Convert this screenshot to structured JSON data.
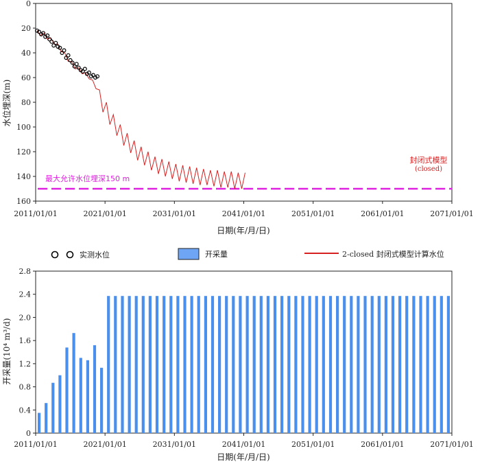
{
  "chart_data": [
    {
      "type": "line",
      "ylabel": "水位埋深(m)",
      "xlabel": "日期(年/月/日)",
      "xlim": [
        2011,
        2071
      ],
      "ylim": [
        0,
        160
      ],
      "y_inverted": true,
      "x_ticks": [
        "2011/01/01",
        "2021/01/01",
        "2031/01/01",
        "2041/01/01",
        "2051/01/01",
        "2061/01/01",
        "2071/01/01"
      ],
      "y_ticks": [
        "0",
        "20",
        "40",
        "60",
        "80",
        "100",
        "120",
        "140",
        "160"
      ],
      "y_tick_values": [
        0,
        20,
        40,
        60,
        80,
        100,
        120,
        140,
        160
      ],
      "series": [
        {
          "name": "实测水位",
          "kind": "scatter",
          "color": "#000000",
          "x": [
            2011.2,
            2011.5,
            2011.8,
            2012.1,
            2012.4,
            2012.7,
            2013.0,
            2013.3,
            2013.6,
            2013.9,
            2014.2,
            2014.5,
            2014.8,
            2015.1,
            2015.4,
            2015.7,
            2016.0,
            2016.3,
            2016.6,
            2016.9,
            2017.2,
            2017.5,
            2017.8,
            2018.1,
            2018.4,
            2018.7,
            2019.0,
            2019.3,
            2019.6,
            2019.9
          ],
          "y": [
            22,
            23,
            25,
            24,
            27,
            26,
            29,
            31,
            34,
            32,
            35,
            36,
            40,
            38,
            44,
            42,
            46,
            48,
            51,
            49,
            52,
            54,
            55,
            53,
            57,
            56,
            59,
            58,
            60,
            59
          ]
        },
        {
          "name": "2-closed 封闭式模型计算水位",
          "kind": "line",
          "color": "#d62020",
          "x_start": 2011.2,
          "step": 0.5,
          "envelope_low": [
            22,
            23,
            24,
            26,
            28,
            30,
            33,
            36,
            40,
            44,
            47,
            50,
            52,
            54,
            56,
            58,
            62,
            66,
            70,
            75,
            80,
            85,
            90,
            94,
            98,
            102,
            105,
            108,
            111,
            114,
            116,
            118,
            120,
            122,
            124,
            125,
            126,
            127,
            128,
            129,
            130,
            131,
            131,
            132,
            132,
            133,
            133,
            134,
            134,
            134,
            135,
            135,
            135,
            136,
            136,
            136,
            136,
            137,
            137,
            137,
            137
          ],
          "amplitude": 13
        }
      ],
      "reference_line": {
        "y": 150,
        "color": "#e020e0"
      },
      "annotations": {
        "max_label": "最大允许水位埋深150 m",
        "model_label": "封闭式模型",
        "model_sub": "(closed)"
      }
    },
    {
      "type": "bar",
      "ylabel": "开采量(10⁴ m³/d)",
      "xlabel": "日期(年/月/日)",
      "xlim": [
        2011,
        2071
      ],
      "ylim": [
        0,
        2.8
      ],
      "x_ticks": [
        "2011/01/01",
        "2021/01/01",
        "2031/01/01",
        "2041/01/01",
        "2051/01/01",
        "2061/01/01",
        "2071/01/01"
      ],
      "y_ticks": [
        "0",
        "0.4",
        "0.8",
        "1.2",
        "1.6",
        "2.0",
        "2.4",
        "2.8"
      ],
      "y_tick_values": [
        0,
        0.4,
        0.8,
        1.2,
        1.6,
        2.0,
        2.4,
        2.8
      ],
      "color": "#4a8fec",
      "series": [
        {
          "name": "开采量",
          "x": [
            2011.5,
            2012.5,
            2013.5,
            2014.5,
            2015.5,
            2016.5,
            2017.5,
            2018.5,
            2019.5,
            2020.5,
            2021.5,
            2022.5,
            2023.5,
            2024.5,
            2025.5,
            2026.5,
            2027.5,
            2028.5,
            2029.5,
            2030.5,
            2031.5,
            2032.5,
            2033.5,
            2034.5,
            2035.5,
            2036.5,
            2037.5,
            2038.5,
            2039.5,
            2040.5,
            2041.5,
            2042.5,
            2043.5,
            2044.5,
            2045.5,
            2046.5,
            2047.5,
            2048.5,
            2049.5,
            2050.5,
            2051.5,
            2052.5,
            2053.5,
            2054.5,
            2055.5,
            2056.5,
            2057.5,
            2058.5,
            2059.5,
            2060.5,
            2061.5,
            2062.5,
            2063.5,
            2064.5,
            2065.5,
            2066.5,
            2067.5,
            2068.5,
            2069.5,
            2070.5
          ],
          "values": [
            0.35,
            0.52,
            0.87,
            1.0,
            1.48,
            1.73,
            1.3,
            1.26,
            1.52,
            1.13,
            2.37,
            2.37,
            2.37,
            2.37,
            2.37,
            2.37,
            2.37,
            2.37,
            2.37,
            2.37,
            2.37,
            2.37,
            2.37,
            2.37,
            2.37,
            2.37,
            2.37,
            2.37,
            2.37,
            2.37,
            2.37,
            2.37,
            2.37,
            2.37,
            2.37,
            2.37,
            2.37,
            2.37,
            2.37,
            2.37,
            2.37,
            2.37,
            2.37,
            2.37,
            2.37,
            2.37,
            2.37,
            2.37,
            2.37,
            2.37,
            2.37,
            2.37,
            2.37,
            2.37,
            2.37,
            2.37,
            2.37,
            2.37,
            2.37,
            2.37
          ]
        }
      ]
    }
  ],
  "legend": {
    "observed": "实测水位",
    "pumping": "开采量",
    "model": "2-closed 封闭式模型计算水位"
  }
}
